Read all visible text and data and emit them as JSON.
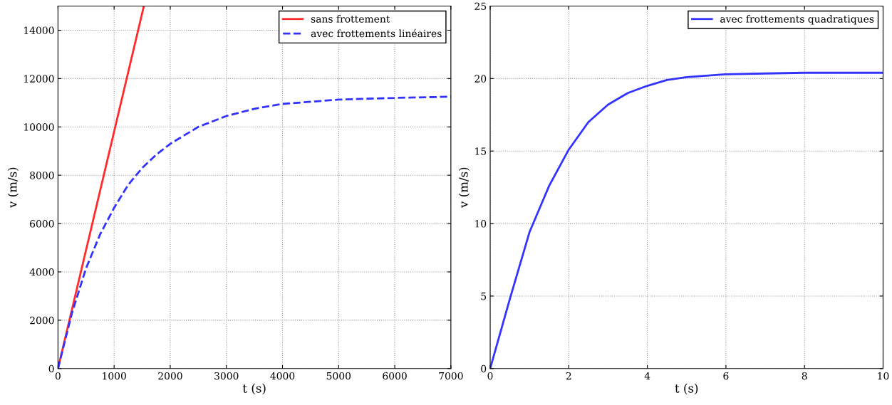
{
  "chart_data": [
    {
      "type": "line",
      "xlabel": "t (s)",
      "ylabel": "v (m/s)",
      "xlim": [
        0,
        7000
      ],
      "ylim": [
        0,
        15000
      ],
      "xticks": [
        0,
        1000,
        2000,
        3000,
        4000,
        5000,
        6000,
        7000
      ],
      "yticks": [
        0,
        2000,
        4000,
        6000,
        8000,
        10000,
        12000,
        14000
      ],
      "grid": true,
      "legend": "top right",
      "series": [
        {
          "name": "sans frottement",
          "color": "#ff2a2a",
          "line_style": "solid",
          "x": [
            0,
            1530
          ],
          "values": [
            0,
            15000
          ]
        },
        {
          "name": "avec frottements linéaires",
          "color": "#3333ff",
          "line_style": "dashed",
          "x": [
            0,
            250,
            500,
            750,
            1000,
            1250,
            1500,
            1750,
            2000,
            2500,
            3000,
            3500,
            4000,
            5000,
            6000,
            7000
          ],
          "values": [
            0,
            2300,
            4150,
            5550,
            6650,
            7600,
            8300,
            8850,
            9300,
            10000,
            10450,
            10750,
            10950,
            11130,
            11200,
            11250
          ]
        }
      ]
    },
    {
      "type": "line",
      "xlabel": "t (s)",
      "ylabel": "v (m/s)",
      "xlim": [
        0,
        10
      ],
      "ylim": [
        0,
        25
      ],
      "xticks": [
        0,
        2,
        4,
        6,
        8,
        10
      ],
      "yticks": [
        0,
        5,
        10,
        15,
        20,
        25
      ],
      "grid": true,
      "legend": "top right",
      "series": [
        {
          "name": "avec frottements quadratiques",
          "color": "#3333ff",
          "line_style": "solid",
          "x": [
            0,
            0.5,
            1,
            1.5,
            2,
            2.5,
            3,
            3.5,
            4,
            4.5,
            5,
            6,
            7,
            8,
            10
          ],
          "values": [
            0,
            4.8,
            9.4,
            12.6,
            15.1,
            17.0,
            18.2,
            19.0,
            19.5,
            19.9,
            20.1,
            20.3,
            20.35,
            20.4,
            20.4
          ]
        }
      ]
    }
  ]
}
